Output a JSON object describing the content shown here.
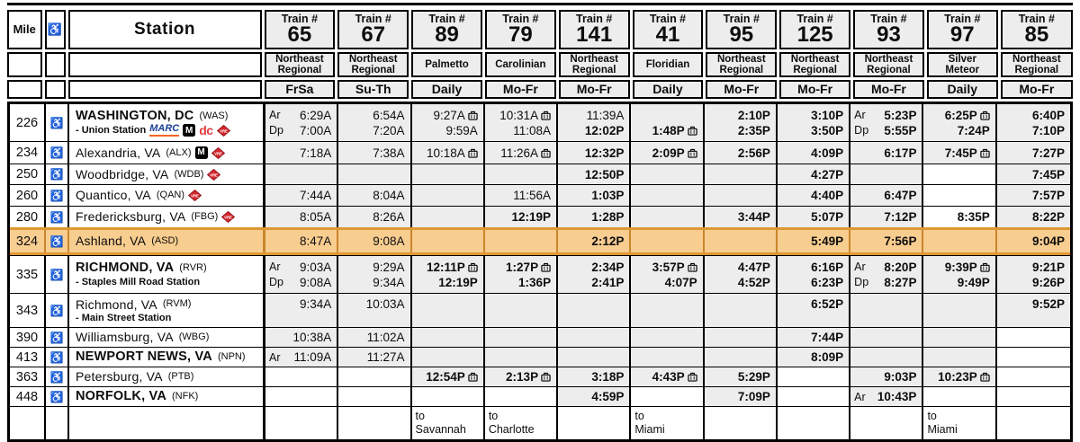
{
  "colors": {
    "shade": "#EDEDED",
    "highlight_bg": "#F8CD90",
    "highlight_border": "#DE9832",
    "highlight_line": "#C9862A",
    "vre_red": "#D6272E",
    "marc_blue": "#1B3F94",
    "marc_orange": "#F26522",
    "dc_red": "#E03A3E",
    "border": "#000000"
  },
  "header": {
    "mile_label": "Mile",
    "access_icon": "♿",
    "station_label": "Station",
    "train_label": "Train #",
    "trains": [
      {
        "number": "65",
        "service": "Northeast Regional",
        "days": "FrSa"
      },
      {
        "number": "67",
        "service": "Northeast Regional",
        "days": "Su-Th"
      },
      {
        "number": "89",
        "service": "Palmetto",
        "days": "Daily"
      },
      {
        "number": "79",
        "service": "Carolinian",
        "days": "Mo-Fr"
      },
      {
        "number": "141",
        "service": "Northeast Regional",
        "days": "Mo-Fr"
      },
      {
        "number": "41",
        "service": "Floridian",
        "days": "Daily"
      },
      {
        "number": "95",
        "service": "Northeast Regional",
        "days": "Mo-Fr"
      },
      {
        "number": "125",
        "service": "Northeast Regional",
        "days": "Mo-Fr"
      },
      {
        "number": "93",
        "service": "Northeast Regional",
        "days": "Mo-Fr"
      },
      {
        "number": "97",
        "service": "Silver Meteor",
        "days": "Daily"
      },
      {
        "number": "85",
        "service": "Northeast Regional",
        "days": "Mo-Fr"
      }
    ]
  },
  "rows": [
    {
      "mile": "226",
      "major": true,
      "name": "WASHINGTON, DC",
      "code": "(WAS)",
      "sub": "- Union Station",
      "sub_logos": [
        "marc",
        "metro",
        "dc",
        "vre"
      ],
      "cells": [
        {
          "lines": [
            {
              "a": "Ar",
              "t": "6:29A"
            },
            {
              "a": "Dp",
              "t": "7:00A"
            }
          ]
        },
        {
          "lines": [
            {
              "t": "6:54A"
            },
            {
              "t": "7:20A"
            }
          ]
        },
        {
          "lines": [
            {
              "t": "9:27A",
              "bag": true
            },
            {
              "t": "9:59A"
            }
          ]
        },
        {
          "lines": [
            {
              "t": "10:31A",
              "bag": true
            },
            {
              "t": "11:08A"
            }
          ]
        },
        {
          "lines": [
            {
              "t": "11:39A"
            },
            {
              "t": "12:02P"
            }
          ]
        },
        {
          "lines": [
            {
              "t": ""
            },
            {
              "t": "1:48P",
              "bag": true
            }
          ]
        },
        {
          "lines": [
            {
              "t": "2:10P"
            },
            {
              "t": "2:35P"
            }
          ]
        },
        {
          "lines": [
            {
              "t": "3:10P"
            },
            {
              "t": "3:50P"
            }
          ]
        },
        {
          "lines": [
            {
              "a": "Ar",
              "t": "5:23P"
            },
            {
              "a": "Dp",
              "t": "5:55P"
            }
          ]
        },
        {
          "lines": [
            {
              "t": "6:25P",
              "bag": true
            },
            {
              "t": "7:24P"
            }
          ]
        },
        {
          "lines": [
            {
              "t": "6:40P"
            },
            {
              "t": "7:10P"
            }
          ]
        }
      ]
    },
    {
      "mile": "234",
      "name": "Alexandria, VA",
      "code": "(ALX)",
      "logos": [
        "metro",
        "vre"
      ],
      "cells": [
        {
          "lines": [
            {
              "t": "7:18A"
            }
          ]
        },
        {
          "lines": [
            {
              "t": "7:38A"
            }
          ]
        },
        {
          "lines": [
            {
              "t": "10:18A",
              "bag": true
            }
          ]
        },
        {
          "lines": [
            {
              "t": "11:26A",
              "bag": true
            }
          ]
        },
        {
          "lines": [
            {
              "t": "12:32P"
            }
          ]
        },
        {
          "lines": [
            {
              "t": "2:09P",
              "bag": true
            }
          ]
        },
        {
          "lines": [
            {
              "t": "2:56P"
            }
          ]
        },
        {
          "lines": [
            {
              "t": "4:09P"
            }
          ]
        },
        {
          "lines": [
            {
              "t": "6:17P"
            }
          ]
        },
        {
          "lines": [
            {
              "t": "7:45P",
              "bag": true
            }
          ]
        },
        {
          "lines": [
            {
              "t": "7:27P"
            }
          ]
        }
      ]
    },
    {
      "mile": "250",
      "name": "Woodbridge, VA",
      "code": "(WDB)",
      "logos": [
        "vre"
      ],
      "cells": [
        null,
        null,
        null,
        null,
        {
          "lines": [
            {
              "t": "12:50P"
            }
          ]
        },
        null,
        null,
        {
          "lines": [
            {
              "t": "4:27P"
            }
          ]
        },
        null,
        {
          "w": true
        },
        {
          "lines": [
            {
              "t": "7:45P"
            }
          ]
        }
      ]
    },
    {
      "mile": "260",
      "name": "Quantico, VA",
      "code": "(QAN)",
      "logos": [
        "vre"
      ],
      "cells": [
        {
          "lines": [
            {
              "t": "7:44A"
            }
          ]
        },
        {
          "lines": [
            {
              "t": "8:04A"
            }
          ]
        },
        null,
        {
          "lines": [
            {
              "t": "11:56A"
            }
          ]
        },
        {
          "lines": [
            {
              "t": "1:03P"
            }
          ]
        },
        null,
        null,
        {
          "lines": [
            {
              "t": "4:40P"
            }
          ]
        },
        {
          "lines": [
            {
              "t": "6:47P"
            }
          ]
        },
        {
          "w": true
        },
        {
          "lines": [
            {
              "t": "7:57P"
            }
          ]
        }
      ]
    },
    {
      "mile": "280",
      "name": "Fredericksburg, VA",
      "code": "(FBG)",
      "logos": [
        "vre"
      ],
      "cells": [
        {
          "lines": [
            {
              "t": "8:05A"
            }
          ]
        },
        {
          "lines": [
            {
              "t": "8:26A"
            }
          ]
        },
        null,
        {
          "lines": [
            {
              "t": "12:19P"
            }
          ]
        },
        {
          "lines": [
            {
              "t": "1:28P"
            }
          ]
        },
        null,
        {
          "lines": [
            {
              "t": "3:44P"
            }
          ]
        },
        {
          "lines": [
            {
              "t": "5:07P"
            }
          ]
        },
        {
          "lines": [
            {
              "t": "7:12P"
            }
          ]
        },
        {
          "w": true,
          "lines": [
            {
              "t": "8:35P"
            }
          ]
        },
        {
          "lines": [
            {
              "t": "8:22P"
            }
          ]
        }
      ]
    },
    {
      "mile": "324",
      "name": "Ashland, VA",
      "code": "(ASD)",
      "highlight": true,
      "cells": [
        {
          "lines": [
            {
              "t": "8:47A"
            }
          ]
        },
        {
          "lines": [
            {
              "t": "9:08A"
            }
          ]
        },
        null,
        null,
        {
          "lines": [
            {
              "t": "2:12P"
            }
          ]
        },
        null,
        null,
        {
          "lines": [
            {
              "t": "5:49P"
            }
          ]
        },
        {
          "lines": [
            {
              "t": "7:56P"
            }
          ]
        },
        null,
        {
          "lines": [
            {
              "t": "9:04P"
            }
          ]
        }
      ]
    },
    {
      "mile": "335",
      "major": true,
      "name": "RICHMOND, VA",
      "code": "(RVR)",
      "sub": "- Staples Mill Road Station",
      "cells": [
        {
          "lines": [
            {
              "a": "Ar",
              "t": "9:03A"
            },
            {
              "a": "Dp",
              "t": "9:08A"
            }
          ]
        },
        {
          "lines": [
            {
              "t": "9:29A"
            },
            {
              "t": "9:34A"
            }
          ]
        },
        {
          "lines": [
            {
              "t": "12:11P",
              "bag": true
            },
            {
              "t": "12:19P"
            }
          ]
        },
        {
          "lines": [
            {
              "t": "1:27P",
              "bag": true
            },
            {
              "t": "1:36P"
            }
          ]
        },
        {
          "lines": [
            {
              "t": "2:34P"
            },
            {
              "t": "2:41P"
            }
          ]
        },
        {
          "lines": [
            {
              "t": "3:57P",
              "bag": true
            },
            {
              "t": "4:07P"
            }
          ]
        },
        {
          "lines": [
            {
              "t": "4:47P"
            },
            {
              "t": "4:52P"
            }
          ]
        },
        {
          "lines": [
            {
              "t": "6:16P"
            },
            {
              "t": "6:23P"
            }
          ]
        },
        {
          "lines": [
            {
              "a": "Ar",
              "t": "8:20P"
            },
            {
              "a": "Dp",
              "t": "8:27P"
            }
          ]
        },
        {
          "lines": [
            {
              "t": "9:39P",
              "bag": true
            },
            {
              "t": "9:49P"
            }
          ]
        },
        {
          "lines": [
            {
              "t": "9:21P"
            },
            {
              "t": "9:26P"
            }
          ]
        }
      ]
    },
    {
      "mile": "343",
      "name": "Richmond, VA",
      "code": "(RVM)",
      "sub": "- Main Street Station",
      "top_align": true,
      "cells": [
        {
          "lines": [
            {
              "t": "9:34A"
            }
          ]
        },
        {
          "lines": [
            {
              "t": "10:03A"
            }
          ]
        },
        null,
        null,
        null,
        null,
        null,
        {
          "lines": [
            {
              "t": "6:52P"
            }
          ]
        },
        null,
        null,
        {
          "lines": [
            {
              "t": "9:52P"
            }
          ]
        }
      ]
    },
    {
      "mile": "390",
      "name": "Williamsburg, VA",
      "code": "(WBG)",
      "cells": [
        {
          "lines": [
            {
              "t": "10:38A"
            }
          ]
        },
        {
          "lines": [
            {
              "t": "11:02A"
            }
          ]
        },
        null,
        null,
        null,
        null,
        null,
        {
          "lines": [
            {
              "t": "7:44P"
            }
          ]
        },
        null,
        null,
        {
          "w": true
        }
      ]
    },
    {
      "mile": "413",
      "major": true,
      "name": "NEWPORT NEWS, VA",
      "code": "(NPN)",
      "cells": [
        {
          "lines": [
            {
              "a": "Ar",
              "t": "11:09A"
            }
          ]
        },
        {
          "lines": [
            {
              "t": "11:27A"
            }
          ]
        },
        null,
        null,
        null,
        null,
        null,
        {
          "lines": [
            {
              "t": "8:09P"
            }
          ]
        },
        null,
        null,
        {
          "w": true
        }
      ]
    },
    {
      "mile": "363",
      "name": "Petersburg, VA",
      "code": "(PTB)",
      "cells": [
        {
          "w": true
        },
        {
          "w": true
        },
        {
          "lines": [
            {
              "t": "12:54P",
              "bag": true
            }
          ]
        },
        {
          "lines": [
            {
              "t": "2:13P",
              "bag": true
            }
          ]
        },
        {
          "lines": [
            {
              "t": "3:18P"
            }
          ]
        },
        {
          "lines": [
            {
              "t": "4:43P",
              "bag": true
            }
          ]
        },
        {
          "lines": [
            {
              "t": "5:29P"
            }
          ]
        },
        {
          "w": true
        },
        {
          "lines": [
            {
              "t": "9:03P"
            }
          ]
        },
        {
          "lines": [
            {
              "t": "10:23P",
              "bag": true
            }
          ]
        },
        {
          "w": true
        }
      ]
    },
    {
      "mile": "448",
      "major": true,
      "name": "NORFOLK, VA",
      "code": "(NFK)",
      "cells": [
        {
          "w": true
        },
        {
          "w": true
        },
        {
          "w": true
        },
        {
          "w": true
        },
        {
          "lines": [
            {
              "t": "4:59P"
            }
          ]
        },
        {
          "w": true
        },
        {
          "lines": [
            {
              "t": "7:09P"
            }
          ]
        },
        {
          "w": true
        },
        {
          "lines": [
            {
              "a": "Ar",
              "t": "10:43P"
            }
          ]
        },
        {
          "w": true
        },
        {
          "w": true
        }
      ]
    }
  ],
  "footer": {
    "cells": [
      null,
      null,
      [
        "to",
        "Savannah"
      ],
      [
        "to",
        "Charlotte"
      ],
      null,
      [
        "to",
        "Miami"
      ],
      null,
      null,
      null,
      [
        "to",
        "Miami"
      ],
      null
    ]
  }
}
